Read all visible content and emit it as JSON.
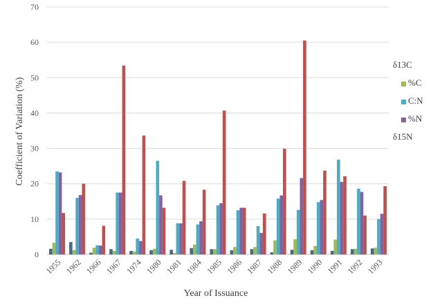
{
  "chart_data": {
    "type": "bar",
    "xlabel": "Year of Issuance",
    "ylabel": "Coefficient of Variation (%)",
    "ylim": [
      0,
      70
    ],
    "yticks": [
      0,
      10,
      20,
      30,
      40,
      50,
      60,
      70
    ],
    "grid": true,
    "legend_position": "right",
    "categories": [
      "1955",
      "1962",
      "1966",
      "1967",
      "1974",
      "1980",
      "1981",
      "1984",
      "1985",
      "1986",
      "1987",
      "1988",
      "1989",
      "1990",
      "1991",
      "1992",
      "1993"
    ],
    "series": [
      {
        "name": "δ13C",
        "legend_text": "δ13C",
        "color": "#4a6785",
        "values": [
          1.6,
          3.5,
          0.5,
          1.5,
          1.0,
          1.2,
          1.3,
          1.8,
          1.5,
          1.2,
          1.5,
          0.6,
          1.3,
          1.2,
          1.0,
          1.5,
          1.7
        ]
      },
      {
        "name": "%C",
        "legend_text": "%C",
        "color": "#9bbb59",
        "values": [
          3.3,
          1.2,
          1.9,
          1.0,
          0.8,
          1.6,
          0.4,
          2.8,
          1.5,
          2.1,
          2.1,
          4.0,
          4.3,
          2.4,
          4.2,
          1.6,
          1.9
        ]
      },
      {
        "name": "C:N",
        "legend_text": "C:N",
        "color": "#4bacc6",
        "values": [
          23.5,
          16.0,
          2.6,
          17.5,
          4.5,
          26.5,
          8.8,
          8.5,
          13.9,
          12.5,
          8.0,
          15.8,
          12.6,
          14.8,
          26.8,
          18.6,
          10.0
        ]
      },
      {
        "name": "%N",
        "legend_text": "%N",
        "color": "#8064a2",
        "values": [
          23.2,
          16.8,
          2.5,
          17.5,
          3.8,
          16.7,
          8.8,
          9.4,
          14.5,
          13.2,
          6.1,
          16.7,
          21.6,
          15.4,
          20.5,
          17.7,
          11.5
        ]
      },
      {
        "name": "δ15N",
        "legend_text": "δ15N",
        "color": "#c0504d",
        "values": [
          11.7,
          20.0,
          8.1,
          53.4,
          33.6,
          13.2,
          20.8,
          18.3,
          40.7,
          13.2,
          11.6,
          29.9,
          60.5,
          23.7,
          22.1,
          11.0,
          19.3
        ]
      }
    ]
  }
}
